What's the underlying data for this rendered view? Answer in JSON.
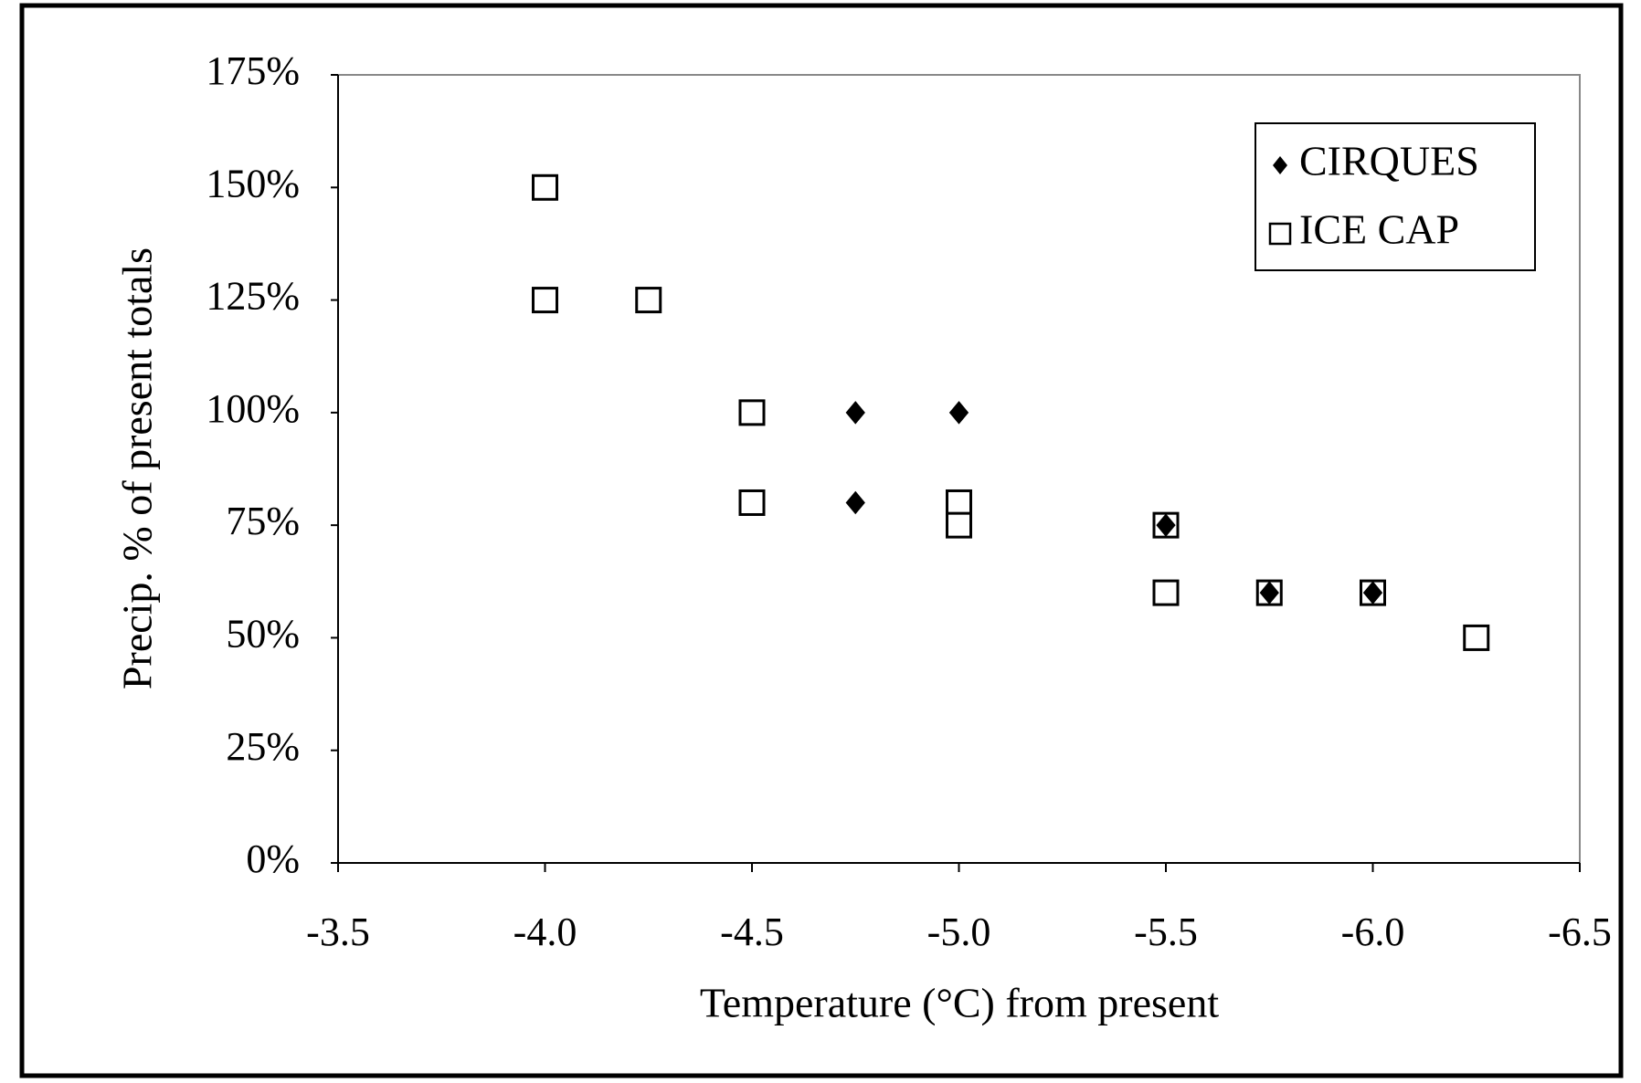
{
  "chart_data": {
    "type": "scatter",
    "x_label": "Temperature (°C) from present",
    "y_label": "Precip. % of present totals",
    "xlim": [
      -3.5,
      -6.5
    ],
    "xticks": [
      -3.5,
      {
        "value": -4,
        "label": "-4.0"
      },
      -4.5,
      {
        "value": -5,
        "label": "-5.0"
      },
      -5.5,
      {
        "value": -6,
        "label": "-6.0"
      },
      -6.5
    ],
    "ylim": [
      0,
      175
    ],
    "yticks": [
      {
        "value": 0,
        "label": "0%"
      },
      {
        "value": 25,
        "label": "25%"
      },
      {
        "value": 50,
        "label": "50%"
      },
      {
        "value": 75,
        "label": "75%"
      },
      {
        "value": 100,
        "label": "100%"
      },
      {
        "value": 125,
        "label": "125%"
      },
      {
        "value": 150,
        "label": "150%"
      },
      {
        "value": 175,
        "label": "175%"
      }
    ],
    "legend": "upper right",
    "series": [
      {
        "name": "CIRQUES",
        "color": "#000000",
        "marker": "diamond",
        "x": [
          -4.75,
          -5,
          -4.75,
          -5.5,
          -5.75,
          -6
        ],
        "values": [
          100,
          100,
          80,
          75,
          60,
          60
        ]
      },
      {
        "name": "ICE CAP",
        "color": "#000000",
        "marker": "square",
        "x": [
          -4,
          -4,
          -4.25,
          -4.5,
          -4.5,
          -5,
          -5,
          -5.5,
          -5.5,
          -5.75,
          -6,
          -6.25
        ],
        "values": [
          150,
          125,
          125,
          100,
          80,
          80,
          75,
          75,
          60,
          60,
          60,
          50
        ]
      }
    ]
  }
}
